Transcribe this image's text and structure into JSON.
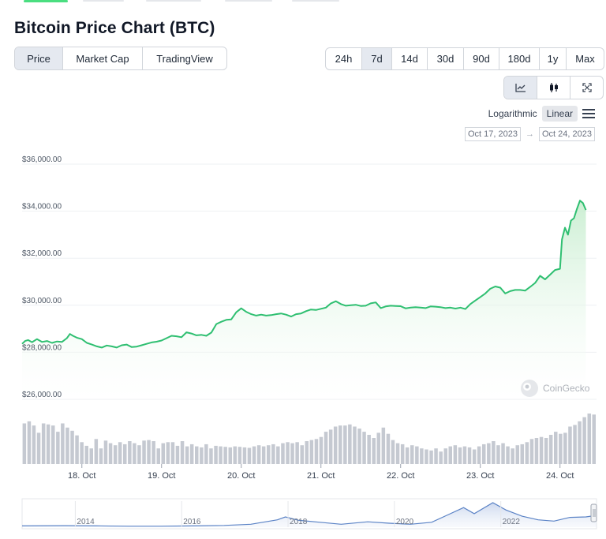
{
  "page": {
    "title": "Bitcoin Price Chart (BTC)",
    "tabs": [
      {
        "label": "Price",
        "active": true
      },
      {
        "label": "Market Cap",
        "active": false
      },
      {
        "label": "TradingView",
        "active": false
      }
    ],
    "ranges": [
      {
        "label": "24h",
        "active": false
      },
      {
        "label": "7d",
        "active": true
      },
      {
        "label": "14d",
        "active": false
      },
      {
        "label": "30d",
        "active": false
      },
      {
        "label": "90d",
        "active": false
      },
      {
        "label": "180d",
        "active": false
      },
      {
        "label": "1y",
        "active": false
      },
      {
        "label": "Max",
        "active": false
      }
    ],
    "chart_icons": [
      "line-chart-icon",
      "candlestick-icon",
      "fullscreen-icon"
    ],
    "scale": {
      "log_label": "Logarithmic",
      "linear_label": "Linear",
      "active": "Linear"
    },
    "dates": {
      "from": "Oct 17, 2023",
      "to": "Oct 24, 2023",
      "separator": "→"
    },
    "watermark": "CoinGecko",
    "colors": {
      "line": "#2fbf71",
      "fill_top": "#c6edce",
      "volume": "#c5c9d1",
      "navigator": "#5b83c6",
      "active_tab": "#e5e9f0"
    }
  },
  "chart_data": {
    "type": "area",
    "y_ticks": [
      "$36,000.00",
      "$34,000.00",
      "$32,000.00",
      "$30,000.00",
      "$28,000.00",
      "$26,000.00"
    ],
    "y_range": [
      26000,
      36000
    ],
    "x_ticks": [
      "18. Oct",
      "19. Oct",
      "20. Oct",
      "21. Oct",
      "22. Oct",
      "23. Oct",
      "24. Oct"
    ],
    "x_range": [
      "2023-10-17T06:00",
      "2023-10-24T11:00"
    ],
    "series": [
      {
        "values": [
          [
            0.0,
            28360
          ],
          [
            0.15,
            28480
          ],
          [
            0.3,
            28520
          ],
          [
            0.5,
            28430
          ],
          [
            0.75,
            28560
          ],
          [
            1.0,
            28440
          ],
          [
            1.25,
            28480
          ],
          [
            1.5,
            28400
          ],
          [
            1.75,
            28460
          ],
          [
            2.0,
            28440
          ],
          [
            2.25,
            28600
          ],
          [
            2.4,
            28780
          ],
          [
            2.55,
            28700
          ],
          [
            2.75,
            28620
          ],
          [
            3.0,
            28560
          ],
          [
            3.25,
            28400
          ],
          [
            3.5,
            28330
          ],
          [
            3.75,
            28250
          ],
          [
            4.0,
            28200
          ],
          [
            4.25,
            28290
          ],
          [
            4.5,
            28250
          ],
          [
            4.75,
            28200
          ],
          [
            5.0,
            28300
          ],
          [
            5.25,
            28330
          ],
          [
            5.5,
            28220
          ],
          [
            5.75,
            28240
          ],
          [
            6.0,
            28300
          ],
          [
            6.25,
            28360
          ],
          [
            6.5,
            28420
          ],
          [
            6.75,
            28450
          ],
          [
            7.0,
            28500
          ],
          [
            7.25,
            28600
          ],
          [
            7.5,
            28700
          ],
          [
            7.75,
            28680
          ],
          [
            8.0,
            28640
          ],
          [
            8.25,
            28850
          ],
          [
            8.5,
            28800
          ],
          [
            8.75,
            28720
          ],
          [
            9.0,
            28740
          ],
          [
            9.25,
            28700
          ],
          [
            9.5,
            28840
          ],
          [
            9.75,
            29200
          ],
          [
            10.0,
            29300
          ],
          [
            10.25,
            29380
          ],
          [
            10.5,
            29400
          ],
          [
            10.75,
            29700
          ],
          [
            11.0,
            29870
          ],
          [
            11.25,
            29720
          ],
          [
            11.5,
            29620
          ],
          [
            11.75,
            29560
          ],
          [
            12.0,
            29600
          ],
          [
            12.25,
            29560
          ],
          [
            12.5,
            29580
          ],
          [
            12.75,
            29620
          ],
          [
            13.0,
            29650
          ],
          [
            13.25,
            29600
          ],
          [
            13.5,
            29520
          ],
          [
            13.75,
            29620
          ],
          [
            14.0,
            29650
          ],
          [
            14.25,
            29750
          ],
          [
            14.5,
            29820
          ],
          [
            14.75,
            29800
          ],
          [
            15.0,
            29850
          ],
          [
            15.25,
            29900
          ],
          [
            15.5,
            30080
          ],
          [
            15.75,
            30170
          ],
          [
            16.0,
            30050
          ],
          [
            16.25,
            29980
          ],
          [
            16.5,
            30000
          ],
          [
            16.75,
            30020
          ],
          [
            17.0,
            29970
          ],
          [
            17.25,
            29980
          ],
          [
            17.5,
            30080
          ],
          [
            17.75,
            30120
          ],
          [
            18.0,
            29880
          ],
          [
            18.25,
            29950
          ],
          [
            18.5,
            29980
          ],
          [
            18.75,
            29970
          ],
          [
            19.0,
            29960
          ],
          [
            19.25,
            29870
          ],
          [
            19.5,
            29900
          ],
          [
            19.75,
            29920
          ],
          [
            20.0,
            29900
          ],
          [
            20.25,
            29880
          ],
          [
            20.5,
            29950
          ],
          [
            20.75,
            29940
          ],
          [
            21.0,
            29920
          ],
          [
            21.25,
            29880
          ],
          [
            21.5,
            29900
          ],
          [
            21.75,
            29860
          ],
          [
            22.0,
            29900
          ],
          [
            22.25,
            29840
          ],
          [
            22.5,
            30050
          ],
          [
            22.75,
            30200
          ],
          [
            23.0,
            30350
          ],
          [
            23.25,
            30500
          ],
          [
            23.5,
            30700
          ],
          [
            23.75,
            30800
          ],
          [
            24.0,
            30750
          ],
          [
            24.25,
            30500
          ],
          [
            24.5,
            30600
          ],
          [
            24.75,
            30650
          ],
          [
            25.0,
            30650
          ],
          [
            25.25,
            30620
          ],
          [
            25.5,
            30780
          ],
          [
            25.75,
            30950
          ],
          [
            26.0,
            31250
          ],
          [
            26.25,
            31100
          ],
          [
            26.5,
            31300
          ],
          [
            26.75,
            31500
          ],
          [
            27.0,
            31550
          ],
          [
            27.1,
            32800
          ],
          [
            27.25,
            33300
          ],
          [
            27.4,
            33000
          ],
          [
            27.55,
            33600
          ],
          [
            27.7,
            33700
          ],
          [
            27.85,
            34100
          ],
          [
            28.0,
            34450
          ],
          [
            28.15,
            34350
          ],
          [
            28.3,
            34050
          ]
        ]
      }
    ],
    "volume_relative": [
      0.78,
      0.82,
      0.74,
      0.6,
      0.78,
      0.76,
      0.74,
      0.62,
      0.78,
      0.7,
      0.64,
      0.55,
      0.42,
      0.35,
      0.3,
      0.48,
      0.3,
      0.45,
      0.4,
      0.36,
      0.42,
      0.38,
      0.44,
      0.4,
      0.36,
      0.45,
      0.46,
      0.44,
      0.3,
      0.4,
      0.42,
      0.42,
      0.35,
      0.44,
      0.34,
      0.38,
      0.34,
      0.32,
      0.38,
      0.3,
      0.35,
      0.34,
      0.33,
      0.32,
      0.34,
      0.33,
      0.32,
      0.31,
      0.34,
      0.36,
      0.34,
      0.36,
      0.38,
      0.34,
      0.4,
      0.42,
      0.4,
      0.42,
      0.36,
      0.44,
      0.46,
      0.48,
      0.52,
      0.62,
      0.66,
      0.72,
      0.74,
      0.74,
      0.76,
      0.72,
      0.68,
      0.62,
      0.56,
      0.5,
      0.6,
      0.7,
      0.58,
      0.46,
      0.4,
      0.38,
      0.32,
      0.36,
      0.34,
      0.3,
      0.28,
      0.26,
      0.3,
      0.24,
      0.3,
      0.34,
      0.36,
      0.32,
      0.34,
      0.32,
      0.28,
      0.34,
      0.38,
      0.4,
      0.44,
      0.36,
      0.4,
      0.34,
      0.3,
      0.36,
      0.38,
      0.42,
      0.48,
      0.5,
      0.52,
      0.5,
      0.56,
      0.62,
      0.58,
      0.6,
      0.72,
      0.75,
      0.82,
      0.9,
      0.97,
      0.95
    ],
    "navigator": {
      "x_ticks": [
        "2014",
        "2016",
        "2018",
        "2020",
        "2022"
      ],
      "x_range": [
        2013.0,
        2023.8
      ],
      "values": [
        [
          2013.0,
          0.05
        ],
        [
          2013.8,
          0.06
        ],
        [
          2014.4,
          0.05
        ],
        [
          2015.0,
          0.04
        ],
        [
          2015.6,
          0.04
        ],
        [
          2016.2,
          0.05
        ],
        [
          2016.8,
          0.07
        ],
        [
          2017.3,
          0.12
        ],
        [
          2017.8,
          0.3
        ],
        [
          2017.95,
          0.42
        ],
        [
          2018.2,
          0.28
        ],
        [
          2018.6,
          0.2
        ],
        [
          2019.0,
          0.12
        ],
        [
          2019.5,
          0.22
        ],
        [
          2019.9,
          0.16
        ],
        [
          2020.3,
          0.12
        ],
        [
          2020.7,
          0.2
        ],
        [
          2021.0,
          0.5
        ],
        [
          2021.3,
          0.8
        ],
        [
          2021.5,
          0.55
        ],
        [
          2021.85,
          1.0
        ],
        [
          2022.1,
          0.7
        ],
        [
          2022.4,
          0.45
        ],
        [
          2022.7,
          0.3
        ],
        [
          2023.0,
          0.25
        ],
        [
          2023.3,
          0.4
        ],
        [
          2023.6,
          0.42
        ],
        [
          2023.8,
          0.48
        ]
      ]
    }
  }
}
